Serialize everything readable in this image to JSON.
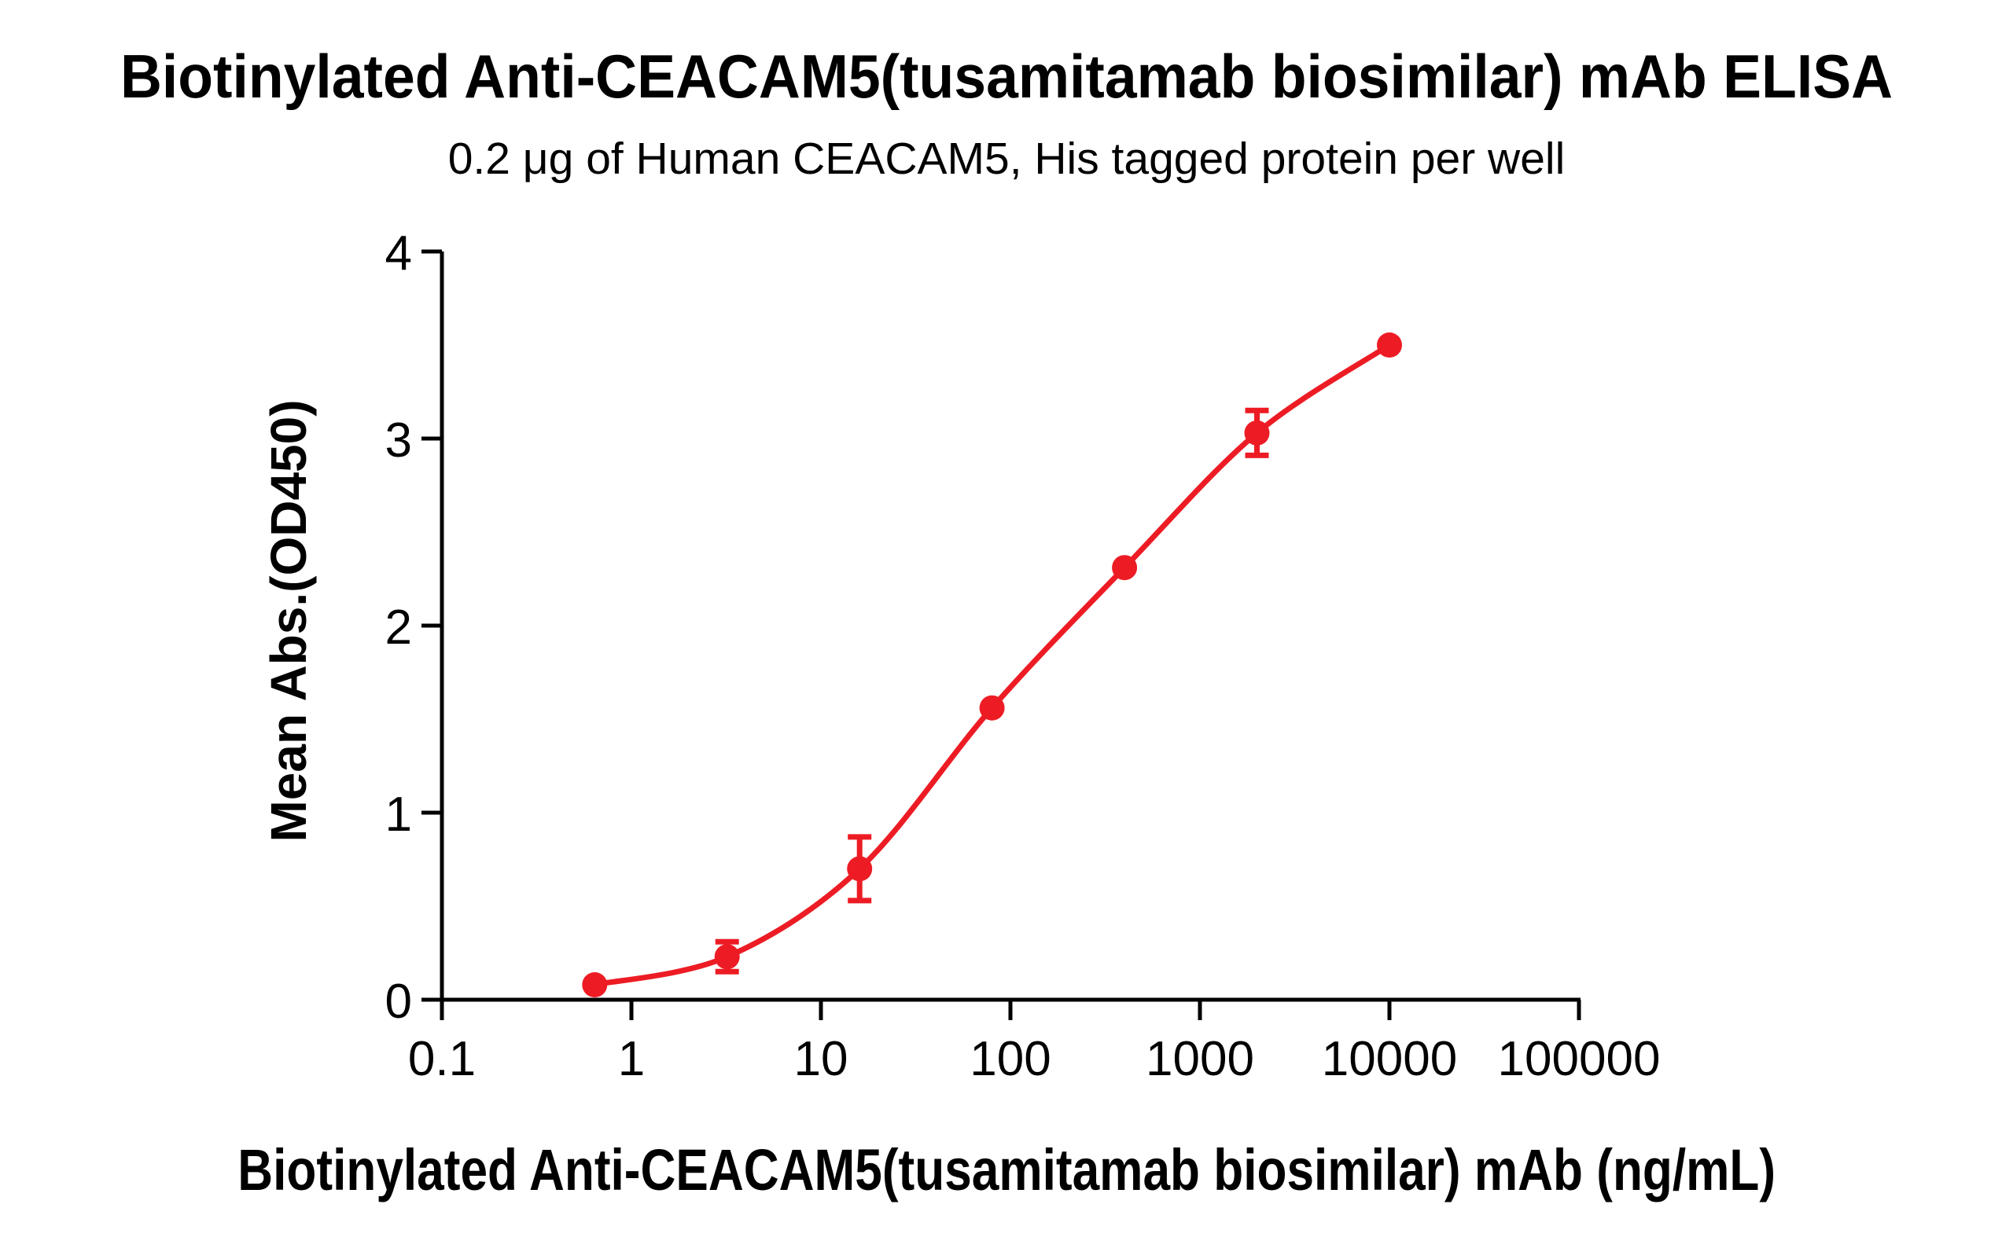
{
  "chart_data": {
    "type": "scatter",
    "title": "Biotinylated Anti-CEACAM5(tusamitamab biosimilar) mAb ELISA",
    "subtitle": "0.2 μg of Human CEACAM5, His tagged protein per well",
    "xlabel": "Biotinylated Anti-CEACAM5(tusamitamab biosimilar) mAb (ng/mL)",
    "ylabel": "Mean Abs.(OD450)",
    "x_scale": "log10",
    "xlim": [
      0.1,
      100000
    ],
    "ylim": [
      0,
      4
    ],
    "x_ticks": [
      "0.1",
      "1",
      "10",
      "100",
      "1000",
      "10000",
      "100000"
    ],
    "y_ticks": [
      "0",
      "1",
      "2",
      "3",
      "4"
    ],
    "grid": false,
    "legend": "none",
    "series": [
      {
        "name": "Biotinylated Anti-CEACAM5(tusamitamab biosimilar) mAb",
        "x": [
          0.64,
          3.2,
          16,
          80,
          400,
          2000,
          10000
        ],
        "y": [
          0.08,
          0.23,
          0.7,
          1.56,
          2.31,
          3.03,
          3.5
        ],
        "y_err": [
          0,
          0.08,
          0.17,
          0,
          0,
          0.12,
          0
        ],
        "marker": "circle",
        "curve_fit": "4PL sigmoidal dose-response"
      }
    ],
    "marker_color": "#ED1C24",
    "line_color": "#ED1C24",
    "axis_color": "#000000",
    "text_color": "#000000"
  }
}
